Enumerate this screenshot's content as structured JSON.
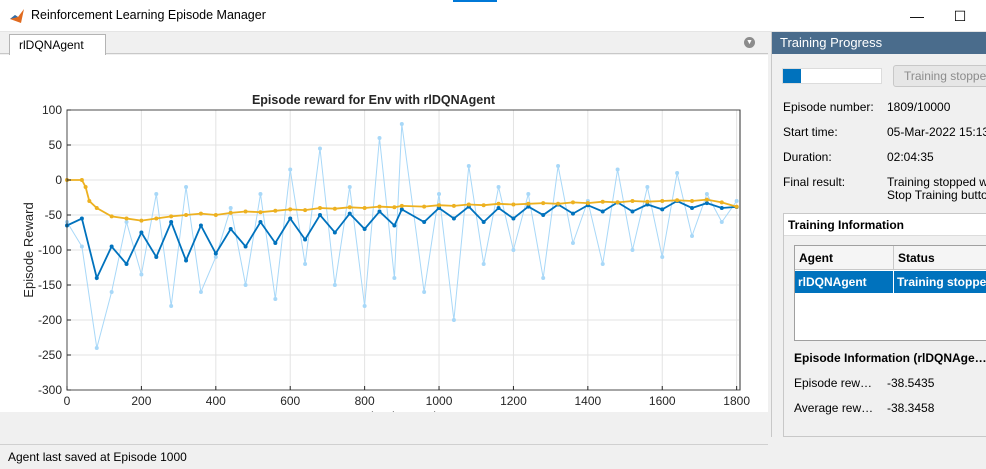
{
  "window": {
    "title": "Reinforcement Learning Episode Manager",
    "minimize_glyph": "—",
    "maximize_glyph": "☐"
  },
  "tab": {
    "label": "rlDQNAgent",
    "menu_glyph": "▼"
  },
  "status_bar": {
    "text": "Agent last saved at Episode 1000"
  },
  "training_progress": {
    "header": "Training Progress",
    "progress_fraction": 0.1809,
    "stop_button_label": "Training stopped",
    "episode_number_label": "Episode number:",
    "episode_number_value": "1809/10000",
    "start_time_label": "Start time:",
    "start_time_value": "05-Mar-2022 15:13",
    "duration_label": "Duration:",
    "duration_value": "02:04:35",
    "final_result_label": "Final result:",
    "final_result_line1": "Training stopped w",
    "final_result_line2": "Stop Training butto"
  },
  "training_information": {
    "header": "Training Information",
    "columns": [
      "Agent",
      "Status"
    ],
    "rows": [
      [
        "rlDQNAgent",
        "Training stopped"
      ]
    ]
  },
  "episode_information": {
    "title": "Episode Information (rlDQNAge…",
    "episode_reward_label": "Episode rew…",
    "episode_reward_value": "-38.5435",
    "average_reward_label": "Average rew…",
    "average_reward_value": "-38.3458"
  },
  "toolbar_icons": [
    "brush-icon",
    "pan-hand-icon",
    "zoom-in-icon",
    "zoom-out-icon",
    "home-icon"
  ],
  "chart_data": {
    "type": "line",
    "title": "Episode reward for Env with rlDQNAgent",
    "xlabel": "Episode Number",
    "ylabel": "Episode Reward",
    "xlim": [
      0,
      1809
    ],
    "ylim": [
      -300,
      100
    ],
    "xticks": [
      0,
      200,
      400,
      600,
      800,
      1000,
      1200,
      1400,
      1600,
      1800
    ],
    "yticks": [
      100,
      50,
      0,
      -50,
      -100,
      -150,
      -200,
      -250,
      -300
    ],
    "grid": true,
    "series": [
      {
        "color": "#a8d8f8",
        "x": [
          0,
          40,
          80,
          120,
          160,
          200,
          240,
          280,
          320,
          360,
          400,
          440,
          480,
          520,
          560,
          600,
          640,
          680,
          720,
          760,
          800,
          840,
          880,
          900,
          960,
          1000,
          1040,
          1080,
          1120,
          1160,
          1200,
          1240,
          1280,
          1320,
          1360,
          1400,
          1440,
          1480,
          1520,
          1560,
          1600,
          1640,
          1680,
          1720,
          1760,
          1800
        ],
        "values": [
          -60,
          -95,
          -240,
          -160,
          -60,
          -135,
          -20,
          -180,
          -10,
          -160,
          -110,
          -40,
          -150,
          -20,
          -170,
          15,
          -120,
          45,
          -150,
          -10,
          -180,
          60,
          -140,
          80,
          -160,
          -20,
          -200,
          20,
          -120,
          -10,
          -100,
          -20,
          -140,
          20,
          -90,
          -30,
          -120,
          15,
          -100,
          -10,
          -110,
          10,
          -80,
          -20,
          -60,
          -30
        ]
      },
      {
        "color": "#0072bd",
        "x": [
          0,
          40,
          80,
          120,
          160,
          200,
          240,
          280,
          320,
          360,
          400,
          440,
          480,
          520,
          560,
          600,
          640,
          680,
          720,
          760,
          800,
          840,
          880,
          900,
          960,
          1000,
          1040,
          1080,
          1120,
          1160,
          1200,
          1240,
          1280,
          1320,
          1360,
          1400,
          1440,
          1480,
          1520,
          1560,
          1600,
          1640,
          1680,
          1720,
          1760,
          1800
        ],
        "values": [
          -65,
          -55,
          -140,
          -95,
          -120,
          -75,
          -110,
          -60,
          -115,
          -65,
          -105,
          -70,
          -95,
          -60,
          -90,
          -55,
          -85,
          -50,
          -75,
          -48,
          -70,
          -45,
          -65,
          -42,
          -60,
          -40,
          -55,
          -38,
          -60,
          -40,
          -55,
          -38,
          -50,
          -35,
          -48,
          -36,
          -45,
          -32,
          -45,
          -35,
          -42,
          -30,
          -40,
          -33,
          -40,
          -38.5
        ]
      },
      {
        "color": "#edb120",
        "x": [
          0,
          40,
          50,
          60,
          80,
          120,
          160,
          200,
          240,
          280,
          320,
          360,
          400,
          440,
          480,
          520,
          560,
          600,
          640,
          680,
          720,
          760,
          800,
          840,
          880,
          900,
          960,
          1000,
          1040,
          1080,
          1120,
          1160,
          1200,
          1240,
          1280,
          1320,
          1360,
          1400,
          1440,
          1480,
          1520,
          1560,
          1600,
          1640,
          1680,
          1720,
          1760,
          1800
        ],
        "values": [
          0,
          0,
          -10,
          -30,
          -40,
          -52,
          -55,
          -58,
          -55,
          -52,
          -50,
          -48,
          -50,
          -47,
          -45,
          -46,
          -44,
          -42,
          -43,
          -40,
          -41,
          -39,
          -40,
          -38,
          -39,
          -37,
          -38,
          -36,
          -37,
          -35,
          -36,
          -34,
          -35,
          -34,
          -33,
          -34,
          -32,
          -33,
          -31,
          -32,
          -30,
          -31,
          -30,
          -29,
          -30,
          -28,
          -32,
          -38.3
        ]
      }
    ]
  }
}
